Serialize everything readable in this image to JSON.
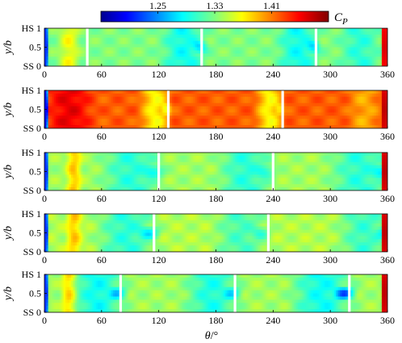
{
  "chart_data": {
    "type": "heatmap",
    "colorbar": {
      "label_main": "C",
      "label_sub": "P",
      "range": [
        1.17,
        1.49
      ],
      "ticks": [
        1.25,
        1.33,
        1.41
      ],
      "tick_labels": [
        "1.25",
        "1.33",
        "1.41"
      ],
      "colormap": "jet"
    },
    "x_axis": {
      "label_symbol": "θ",
      "label_unit": "/°",
      "range": [
        0,
        360
      ],
      "ticks": [
        0,
        60,
        120,
        180,
        240,
        300,
        360
      ],
      "tick_labels": [
        "0",
        "60",
        "120",
        "180",
        "240",
        "300",
        "360"
      ]
    },
    "y_axis": {
      "label_main": "y",
      "label_den": "/b",
      "range": [
        0,
        1
      ],
      "ticks": [
        0,
        0.5,
        1
      ],
      "tick_labels": [
        "SS 0",
        "0.5",
        "HS 1"
      ]
    },
    "panels": [
      {
        "base": 1.33,
        "blades": [
          45,
          165,
          285
        ],
        "edge_low": 1.22,
        "edge_high": 1.46,
        "features": [
          {
            "center": 25,
            "width": 16,
            "value": 1.365
          },
          {
            "center": 145,
            "width": 32,
            "value": 1.29,
            "core": 1.25
          },
          {
            "center": 265,
            "width": 30,
            "value": 1.29,
            "core": 1.25
          },
          {
            "center": 330,
            "width": 30,
            "value": 1.3
          }
        ]
      },
      {
        "base": 1.42,
        "blades": [
          130,
          250
        ],
        "edge_low": 1.2,
        "edge_high": 1.47,
        "features": [
          {
            "center": 25,
            "width": 35,
            "value": 1.455
          },
          {
            "center": 115,
            "width": 22,
            "value": 1.37,
            "core": 1.33
          },
          {
            "center": 235,
            "width": 20,
            "value": 1.37,
            "core": 1.34
          },
          {
            "center": 335,
            "width": 25,
            "value": 1.395
          }
        ]
      },
      {
        "base": 1.34,
        "blades": [
          120,
          240
        ],
        "edge_low": 1.22,
        "edge_high": 1.47,
        "features": [
          {
            "center": 30,
            "width": 12,
            "value": 1.385
          },
          {
            "center": 90,
            "width": 45,
            "value": 1.3,
            "core": 1.26
          },
          {
            "center": 210,
            "width": 40,
            "value": 1.3,
            "core": 1.27
          },
          {
            "center": 330,
            "width": 45,
            "value": 1.3,
            "core": 1.25
          }
        ]
      },
      {
        "base": 1.345,
        "blades": [
          115,
          235
        ],
        "edge_low": 1.22,
        "edge_high": 1.47,
        "features": [
          {
            "center": 30,
            "width": 12,
            "value": 1.385
          },
          {
            "center": 85,
            "width": 45,
            "value": 1.3,
            "core": 1.25
          },
          {
            "center": 205,
            "width": 40,
            "value": 1.31,
            "core": 1.28
          },
          {
            "center": 335,
            "width": 40,
            "value": 1.305,
            "core": 1.26
          }
        ]
      },
      {
        "base": 1.34,
        "blades": [
          80,
          200,
          320
        ],
        "edge_low": 1.22,
        "edge_high": 1.47,
        "features": [
          {
            "center": 25,
            "width": 12,
            "value": 1.385
          },
          {
            "center": 55,
            "width": 40,
            "value": 1.29,
            "core": 1.24
          },
          {
            "center": 175,
            "width": 40,
            "value": 1.295,
            "core": 1.25
          },
          {
            "center": 290,
            "width": 45,
            "value": 1.29,
            "core": 1.2
          }
        ]
      }
    ]
  }
}
